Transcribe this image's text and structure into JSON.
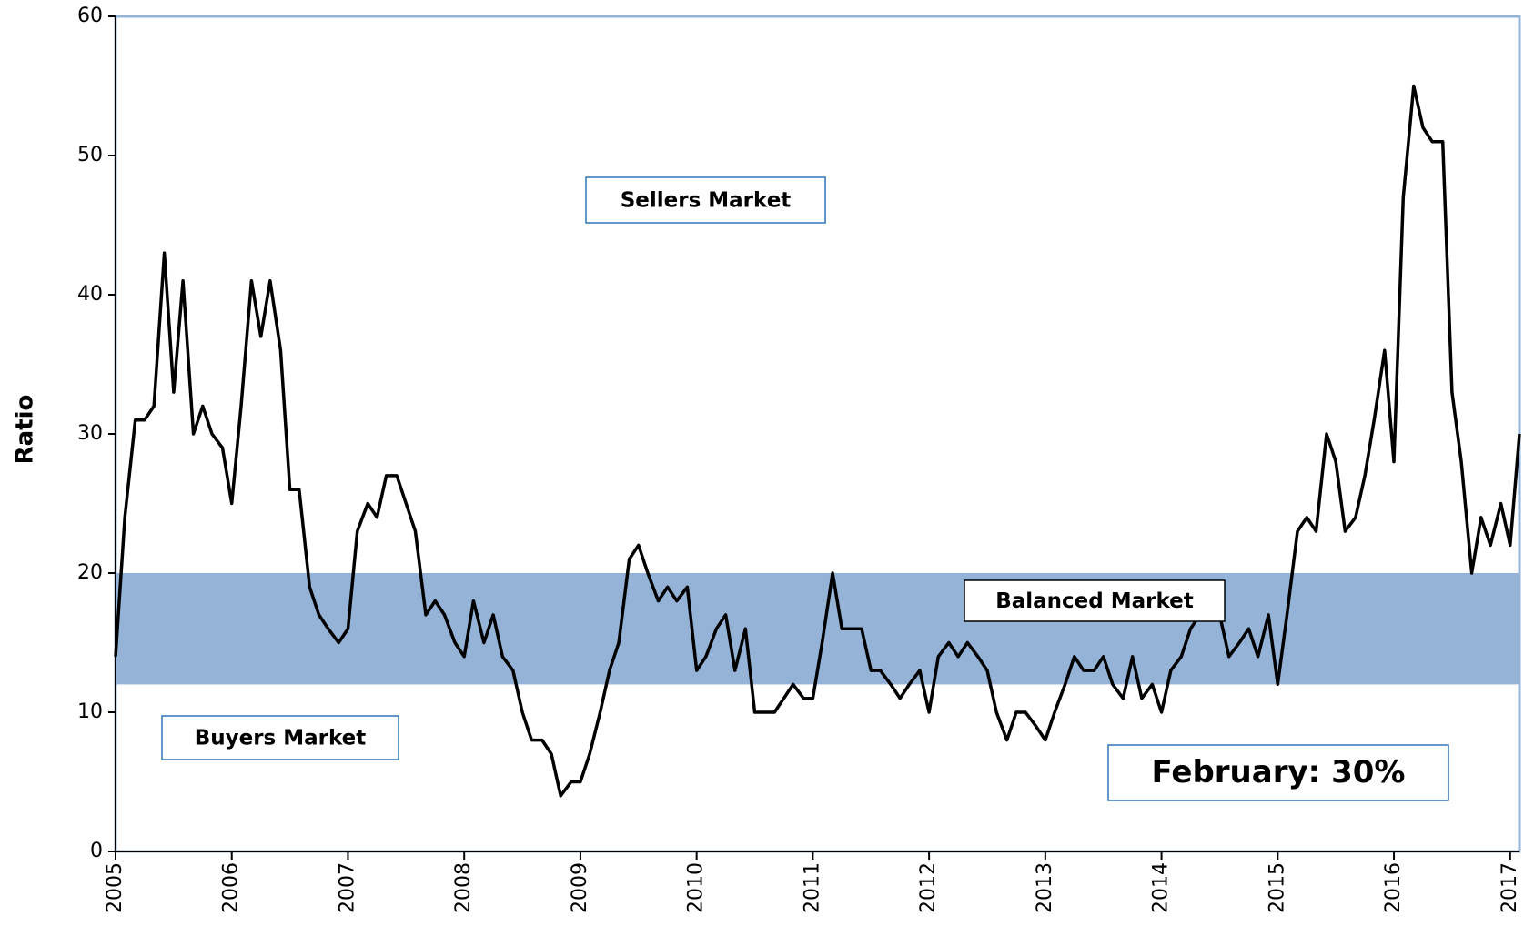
{
  "chart_data": {
    "type": "line",
    "y_label": "Ratio",
    "x": [
      2005,
      2005.08,
      2005.17,
      2005.25,
      2005.33,
      2005.42,
      2005.5,
      2005.58,
      2005.67,
      2005.75,
      2005.83,
      2005.92,
      2006,
      2006.08,
      2006.17,
      2006.25,
      2006.33,
      2006.42,
      2006.5,
      2006.58,
      2006.67,
      2006.75,
      2006.83,
      2006.92,
      2007,
      2007.08,
      2007.17,
      2007.25,
      2007.33,
      2007.42,
      2007.5,
      2007.58,
      2007.67,
      2007.75,
      2007.83,
      2007.92,
      2008,
      2008.08,
      2008.17,
      2008.25,
      2008.33,
      2008.42,
      2008.5,
      2008.58,
      2008.67,
      2008.75,
      2008.83,
      2008.92,
      2009,
      2009.08,
      2009.17,
      2009.25,
      2009.33,
      2009.42,
      2009.5,
      2009.58,
      2009.67,
      2009.75,
      2009.83,
      2009.92,
      2010,
      2010.08,
      2010.17,
      2010.25,
      2010.33,
      2010.42,
      2010.5,
      2010.58,
      2010.67,
      2010.75,
      2010.83,
      2010.92,
      2011,
      2011.08,
      2011.17,
      2011.25,
      2011.33,
      2011.42,
      2011.5,
      2011.58,
      2011.67,
      2011.75,
      2011.83,
      2011.92,
      2012,
      2012.08,
      2012.17,
      2012.25,
      2012.33,
      2012.42,
      2012.5,
      2012.58,
      2012.67,
      2012.75,
      2012.83,
      2012.92,
      2013,
      2013.08,
      2013.17,
      2013.25,
      2013.33,
      2013.42,
      2013.5,
      2013.58,
      2013.67,
      2013.75,
      2013.83,
      2013.92,
      2014,
      2014.08,
      2014.17,
      2014.25,
      2014.33,
      2014.42,
      2014.5,
      2014.58,
      2014.67,
      2014.75,
      2014.83,
      2014.92,
      2015,
      2015.08,
      2015.17,
      2015.25,
      2015.33,
      2015.42,
      2015.5,
      2015.58,
      2015.67,
      2015.75,
      2015.83,
      2015.92,
      2016,
      2016.08,
      2016.17,
      2016.25,
      2016.33,
      2016.42,
      2016.5,
      2016.58,
      2016.67,
      2016.75,
      2016.83,
      2016.92,
      2017,
      2017.08
    ],
    "series": [
      {
        "color": "#000000",
        "values": [
          14,
          24,
          31,
          31,
          32,
          43,
          33,
          41,
          30,
          32,
          30,
          29,
          25,
          32,
          41,
          37,
          41,
          36,
          26,
          26,
          19,
          17,
          16,
          15,
          16,
          23,
          25,
          24,
          27,
          27,
          25,
          23,
          17,
          18,
          17,
          15,
          14,
          18,
          15,
          17,
          14,
          13,
          10,
          8,
          8,
          7,
          4,
          5,
          5,
          7,
          10,
          13,
          15,
          21,
          22,
          20,
          18,
          19,
          18,
          19,
          13,
          14,
          16,
          17,
          13,
          16,
          10,
          10,
          10,
          11,
          12,
          11,
          11,
          15,
          20,
          16,
          16,
          16,
          13,
          13,
          12,
          11,
          12,
          13,
          10,
          14,
          15,
          14,
          15,
          14,
          13,
          10,
          8,
          10,
          10,
          9,
          8,
          10,
          12,
          14,
          13,
          13,
          14,
          12,
          11,
          14,
          11,
          12,
          10,
          13,
          14,
          16,
          17,
          18,
          17,
          14,
          15,
          16,
          14,
          17,
          12,
          17,
          23,
          24,
          23,
          30,
          28,
          23,
          24,
          27,
          31,
          36,
          28,
          47,
          55,
          52,
          51,
          51,
          33,
          28,
          20,
          24,
          22,
          25,
          22,
          30
        ]
      }
    ],
    "xlim": [
      2005,
      2017.08
    ],
    "xticks": [
      2005,
      2006,
      2007,
      2008,
      2009,
      2010,
      2011,
      2012,
      2013,
      2014,
      2015,
      2016,
      2017
    ],
    "ylim": [
      0,
      60
    ],
    "yticks": [
      0,
      10,
      20,
      30,
      40,
      50,
      60
    ],
    "shaded_band": {
      "from": 12,
      "to": 20,
      "color": "#95b3d7"
    },
    "annotations": [
      "Sellers Market",
      "Balanced Market",
      "Buyers Market",
      "February: 30%"
    ]
  }
}
